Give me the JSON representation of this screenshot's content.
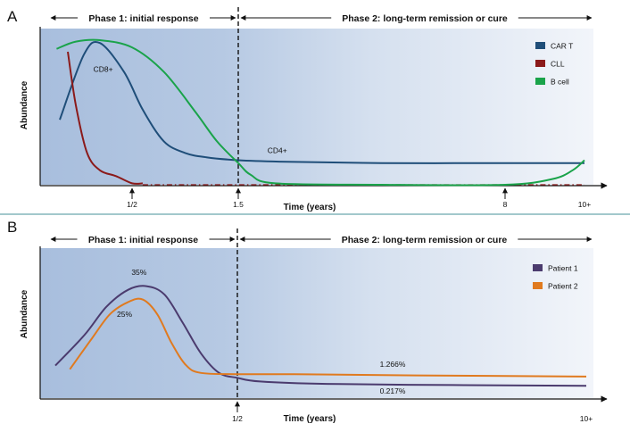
{
  "chart_data": [
    {
      "panel": "A",
      "type": "line",
      "phase_labels": [
        "Phase 1: initial response",
        "Phase 2: long-term remission or cure"
      ],
      "xlabel": "Time (years)",
      "ylabel": "Abundance",
      "x_ticks": [
        {
          "x": 0.5,
          "label": "1/2"
        },
        {
          "x": 1.5,
          "label": "1.5"
        },
        {
          "x": 8,
          "label": "8"
        },
        {
          "x": 10,
          "label": "10+"
        }
      ],
      "divider_x": 1.5,
      "legend_position": "top-right",
      "series": [
        {
          "name": "CAR T",
          "color": "#1f4e79",
          "points": [
            [
              0.05,
              0.45
            ],
            [
              0.2,
              0.9
            ],
            [
              0.3,
              0.98
            ],
            [
              0.45,
              0.78
            ],
            [
              0.6,
              0.52
            ],
            [
              0.8,
              0.3
            ],
            [
              1.0,
              0.22
            ],
            [
              1.2,
              0.19
            ],
            [
              1.5,
              0.17
            ],
            [
              2.5,
              0.16
            ],
            [
              5,
              0.15
            ],
            [
              8,
              0.15
            ],
            [
              9.5,
              0.15
            ],
            [
              10,
              0.15
            ]
          ]
        },
        {
          "name": "CLL",
          "color": "#8b1a1a",
          "points": [
            [
              0.1,
              0.92
            ],
            [
              0.15,
              0.55
            ],
            [
              0.22,
              0.22
            ],
            [
              0.3,
              0.1
            ],
            [
              0.4,
              0.06
            ],
            [
              0.5,
              0.01
            ],
            [
              0.6,
              0.01
            ]
          ]
        },
        {
          "name": "B cell",
          "color": "#1aa34a",
          "points": [
            [
              0.03,
              0.94
            ],
            [
              0.15,
              0.99
            ],
            [
              0.3,
              1.0
            ],
            [
              0.5,
              0.95
            ],
            [
              0.8,
              0.78
            ],
            [
              1.1,
              0.5
            ],
            [
              1.3,
              0.3
            ],
            [
              1.5,
              0.15
            ],
            [
              1.8,
              0.07
            ],
            [
              2.4,
              0.01
            ],
            [
              5,
              0.0
            ],
            [
              8,
              0.0
            ],
            [
              9.2,
              0.04
            ],
            [
              9.7,
              0.1
            ],
            [
              10,
              0.17
            ]
          ]
        }
      ],
      "annotations": [
        {
          "text": "CD8+",
          "x": 0.32,
          "y": 0.78
        },
        {
          "text": "CD4+",
          "x": 2.45,
          "y": 0.22
        }
      ],
      "baseline_line": {
        "style": "dash-dot",
        "color": "#8b1a1a",
        "from_x": 0.6,
        "to_x": 10
      }
    },
    {
      "panel": "B",
      "type": "line",
      "phase_labels": [
        "Phase 1: initial response",
        "Phase 2: long-term remission or cure"
      ],
      "xlabel": "Time (years)",
      "ylabel": "Abundance",
      "x_ticks": [
        {
          "x": 0.5,
          "label": "1/2"
        },
        {
          "x": 10,
          "label": "10+"
        }
      ],
      "divider_x": 0.5,
      "legend_position": "top-right",
      "series": [
        {
          "name": "Patient 1",
          "color": "#4b3b6e",
          "points": [
            [
              0.0,
              0.2
            ],
            [
              0.08,
              0.45
            ],
            [
              0.14,
              0.68
            ],
            [
              0.2,
              0.82
            ],
            [
              0.25,
              0.85
            ],
            [
              0.3,
              0.78
            ],
            [
              0.35,
              0.55
            ],
            [
              0.4,
              0.3
            ],
            [
              0.45,
              0.14
            ],
            [
              0.5,
              0.1
            ],
            [
              0.7,
              0.07
            ],
            [
              1.5,
              0.05
            ],
            [
              4,
              0.04
            ],
            [
              10,
              0.035
            ]
          ]
        },
        {
          "name": "Patient 2",
          "color": "#e07a1f",
          "points": [
            [
              0.04,
              0.17
            ],
            [
              0.1,
              0.42
            ],
            [
              0.15,
              0.62
            ],
            [
              0.2,
              0.72
            ],
            [
              0.24,
              0.74
            ],
            [
              0.28,
              0.62
            ],
            [
              0.32,
              0.38
            ],
            [
              0.36,
              0.2
            ],
            [
              0.4,
              0.14
            ],
            [
              0.5,
              0.13
            ],
            [
              1.0,
              0.13
            ],
            [
              3,
              0.12
            ],
            [
              10,
              0.11
            ]
          ]
        }
      ],
      "annotations": [
        {
          "text": "35%",
          "x": 0.23,
          "y": 0.94,
          "color": "#4b3b6e"
        },
        {
          "text": "25%",
          "x": 0.19,
          "y": 0.6,
          "color": "#e07a1f"
        },
        {
          "text": "1.266%",
          "x": 2.5,
          "y": 0.19,
          "color": "#e07a1f"
        },
        {
          "text": "0.217%",
          "x": 2.5,
          "y": -0.03,
          "color": "#4b3b6e"
        }
      ]
    }
  ]
}
